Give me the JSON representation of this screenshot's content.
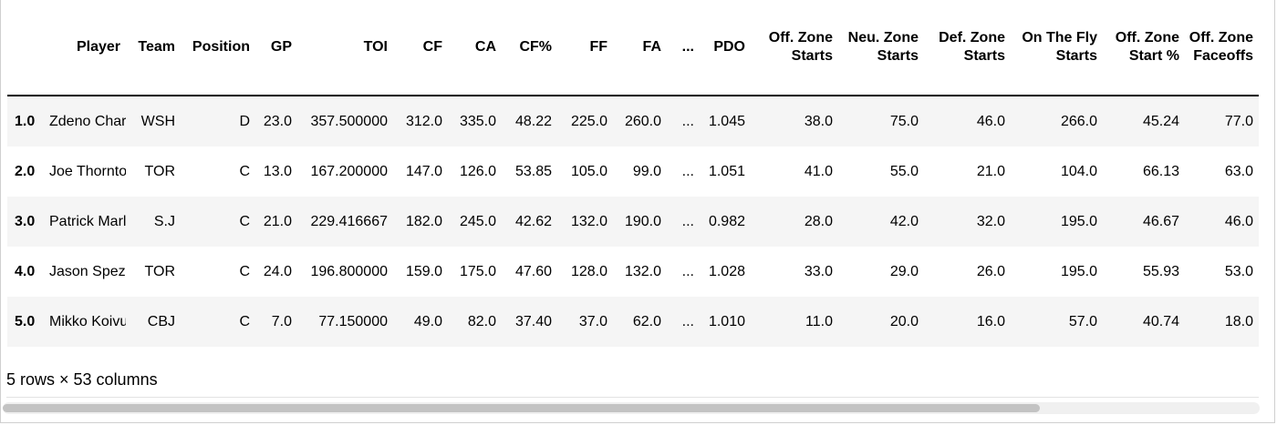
{
  "table": {
    "columns": [
      {
        "key": "idx",
        "label": ""
      },
      {
        "key": "player",
        "label": "Player"
      },
      {
        "key": "team",
        "label": "Team"
      },
      {
        "key": "position",
        "label": "Position"
      },
      {
        "key": "gp",
        "label": "GP"
      },
      {
        "key": "toi",
        "label": "TOI"
      },
      {
        "key": "cf",
        "label": "CF"
      },
      {
        "key": "ca",
        "label": "CA"
      },
      {
        "key": "cfpct",
        "label": "CF%"
      },
      {
        "key": "ff",
        "label": "FF"
      },
      {
        "key": "fa",
        "label": "FA"
      },
      {
        "key": "ellipsis",
        "label": "..."
      },
      {
        "key": "pdo",
        "label": "PDO"
      },
      {
        "key": "ozs",
        "label": "Off. Zone Starts"
      },
      {
        "key": "nzs",
        "label": "Neu. Zone Starts"
      },
      {
        "key": "dzs",
        "label": "Def. Zone Starts"
      },
      {
        "key": "otf",
        "label": "On The Fly Starts"
      },
      {
        "key": "ozspct",
        "label": "Off. Zone Start %"
      },
      {
        "key": "ozf",
        "label": "Off. Zone Faceoffs"
      }
    ],
    "rows": [
      [
        "1.0",
        "Zdeno Chara",
        "WSH",
        "D",
        "23.0",
        "357.500000",
        "312.0",
        "335.0",
        "48.22",
        "225.0",
        "260.0",
        "...",
        "1.045",
        "38.0",
        "75.0",
        "46.0",
        "266.0",
        "45.24",
        "77.0"
      ],
      [
        "2.0",
        "Joe Thornton",
        "TOR",
        "C",
        "13.0",
        "167.200000",
        "147.0",
        "126.0",
        "53.85",
        "105.0",
        "99.0",
        "...",
        "1.051",
        "41.0",
        "55.0",
        "21.0",
        "104.0",
        "66.13",
        "63.0"
      ],
      [
        "3.0",
        "Patrick Marleau",
        "S.J",
        "C",
        "21.0",
        "229.416667",
        "182.0",
        "245.0",
        "42.62",
        "132.0",
        "190.0",
        "...",
        "0.982",
        "28.0",
        "42.0",
        "32.0",
        "195.0",
        "46.67",
        "46.0"
      ],
      [
        "4.0",
        "Jason Spezza",
        "TOR",
        "C",
        "24.0",
        "196.800000",
        "159.0",
        "175.0",
        "47.60",
        "128.0",
        "132.0",
        "...",
        "1.028",
        "33.0",
        "29.0",
        "26.0",
        "195.0",
        "55.93",
        "53.0"
      ],
      [
        "5.0",
        "Mikko Koivu",
        "CBJ",
        "C",
        "7.0",
        "77.150000",
        "49.0",
        "82.0",
        "37.40",
        "37.0",
        "62.0",
        "...",
        "1.010",
        "11.0",
        "20.0",
        "16.0",
        "57.0",
        "40.74",
        "18.0"
      ]
    ]
  },
  "summary": "5 rows × 53 columns"
}
